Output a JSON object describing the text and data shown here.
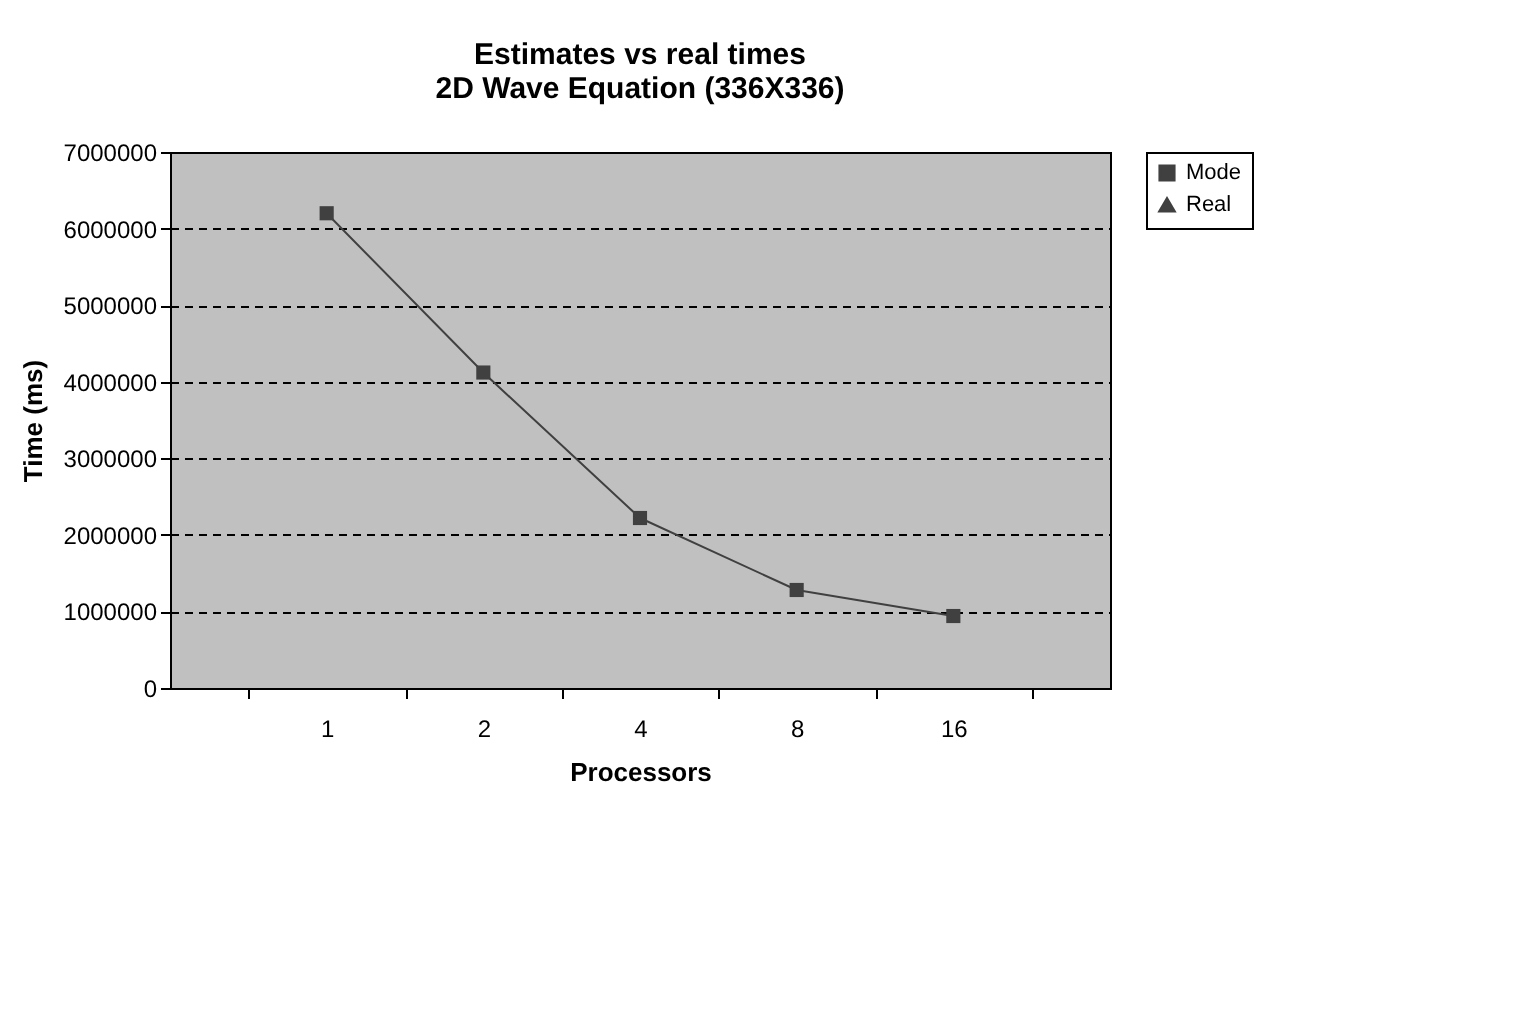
{
  "chart_data": {
    "type": "line",
    "title": [
      "Estimates vs real times",
      "2D Wave Equation (336X336)"
    ],
    "xlabel": "Processors",
    "ylabel": "Time (ms)",
    "categories": [
      "1",
      "2",
      "4",
      "8",
      "16"
    ],
    "series": [
      {
        "name": "Mode",
        "color": "#404040",
        "marker": "square",
        "values": [
          6200000,
          4120000,
          2220000,
          1280000,
          940000
        ]
      },
      {
        "name": "Real",
        "color": "#404040",
        "marker": "triangle",
        "values": [
          null,
          null,
          null,
          null,
          null
        ]
      }
    ],
    "ylim": [
      0,
      7000000
    ],
    "yticks": [
      0,
      1000000,
      2000000,
      3000000,
      4000000,
      5000000,
      6000000,
      7000000
    ],
    "grid": "y",
    "legend": "right",
    "line_style": "solid"
  }
}
